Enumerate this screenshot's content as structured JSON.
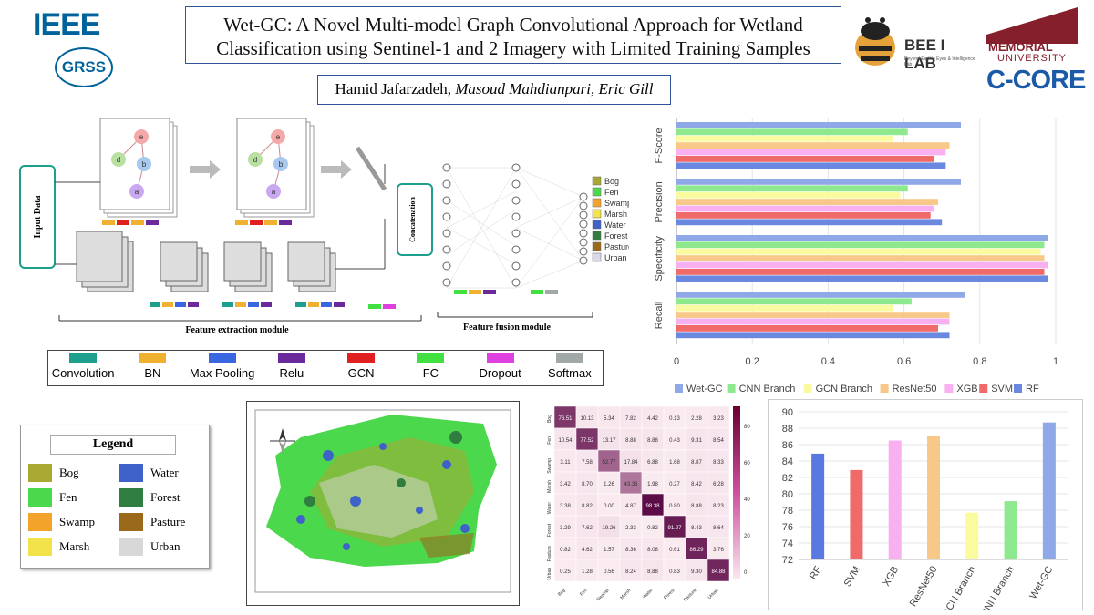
{
  "title": "Wet-GC: A Novel Multi-model Graph Convolutional Approach for Wetland Classification using Sentinel-1 and 2 Imagery with Limited Training Samples",
  "authors": {
    "lead": "Hamid Jafarzadeh, ",
    "rest": "Masoud Mahdianpari, Eric Gill"
  },
  "logos": {
    "ieee": "IEEE",
    "grss": "GRSS",
    "beelab": "BEE I LAB",
    "beelab_sub": "Beyond Earth's Eyes & Intelligence Lab",
    "memorial1": "MEMORIAL",
    "memorial2": "UNIVERSITY",
    "ccore": "C-CORE"
  },
  "diagram": {
    "input": "Input Data",
    "concat": "Concatenation",
    "fe_module": "Feature extraction module",
    "ff_module": "Feature fusion module",
    "node_labels": [
      "e",
      "d",
      "b",
      "a"
    ],
    "classes": [
      {
        "name": "Bog",
        "color": "#a8a832"
      },
      {
        "name": "Fen",
        "color": "#4cd84c"
      },
      {
        "name": "Swamp",
        "color": "#f4a32a"
      },
      {
        "name": "Marsh",
        "color": "#f2e34a"
      },
      {
        "name": "Water",
        "color": "#3f62c9"
      },
      {
        "name": "Forest",
        "color": "#2f7d3f"
      },
      {
        "name": "Pasture",
        "color": "#9a6a1a"
      },
      {
        "name": "Urban",
        "color": "#d8d8e8"
      }
    ]
  },
  "layer_legend": [
    {
      "name": "Convolution",
      "color": "#1e9e8c"
    },
    {
      "name": "BN",
      "color": "#f0b030"
    },
    {
      "name": "Max Pooling",
      "color": "#3a66e0"
    },
    {
      "name": "Relu",
      "color": "#6a2a9a"
    },
    {
      "name": "GCN",
      "color": "#e02020"
    },
    {
      "name": "FC",
      "color": "#3fe03f"
    },
    {
      "name": "Dropout",
      "color": "#e040e0"
    },
    {
      "name": "Softmax",
      "color": "#a0a8a8"
    }
  ],
  "map_legend": {
    "title": "Legend",
    "items": [
      {
        "name": "Bog",
        "color": "#a8a832"
      },
      {
        "name": "Water",
        "color": "#3f62c9"
      },
      {
        "name": "Fen",
        "color": "#4cd84c"
      },
      {
        "name": "Forest",
        "color": "#2f7d3f"
      },
      {
        "name": "Swamp",
        "color": "#f4a32a"
      },
      {
        "name": "Pasture",
        "color": "#9a6a1a"
      },
      {
        "name": "Marsh",
        "color": "#f2e34a"
      },
      {
        "name": "Urban",
        "color": "#d8d8d8"
      }
    ]
  },
  "confusion": {
    "labels": [
      "Bog",
      "Fen",
      "Swamp",
      "Marsh",
      "Water",
      "Forest",
      "Pasture",
      "Urban"
    ],
    "cells": [
      [
        "76.51",
        "10.13",
        "5.34",
        "7.82",
        "4.42",
        "0.13",
        "2.28",
        "3.23"
      ],
      [
        "10.54",
        "77.52",
        "13.17",
        "8.88",
        "8.88",
        "0.43",
        "9.31",
        "8.54"
      ],
      [
        "3.11",
        "7.58",
        "52.77",
        "17.84",
        "6.88",
        "1.68",
        "8.87",
        "8.33"
      ],
      [
        "3.42",
        "8.70",
        "1.26",
        "43.36",
        "1.98",
        "0.27",
        "8.42",
        "6.28"
      ],
      [
        "3.38",
        "8.82",
        "0.00",
        "4.87",
        "98.38",
        "0.80",
        "8.88",
        "8.23"
      ],
      [
        "3.29",
        "7.62",
        "19.26",
        "2.33",
        "0.82",
        "91.27",
        "8.43",
        "8.64"
      ],
      [
        "0.82",
        "4.62",
        "1.57",
        "8.36",
        "8.08",
        "0.61",
        "86.29",
        "3.76"
      ],
      [
        "0.25",
        "1.28",
        "0.56",
        "8.24",
        "8.88",
        "0.83",
        "9.30",
        "84.88"
      ]
    ],
    "colorbar_ticks": [
      "80",
      "60",
      "40",
      "20",
      "0"
    ]
  },
  "chart_data": [
    {
      "type": "bar",
      "orientation": "horizontal",
      "categories": [
        "F-Score",
        "Precision",
        "Specificity",
        "Recall"
      ],
      "series": [
        {
          "name": "Wet-GC",
          "color": "#8fa8e8",
          "values": [
            0.75,
            0.75,
            0.98,
            0.76
          ]
        },
        {
          "name": "CNN Branch",
          "color": "#8ee88e",
          "values": [
            0.61,
            0.61,
            0.97,
            0.62
          ]
        },
        {
          "name": "GCN Branch",
          "color": "#fafaa0",
          "values": [
            0.57,
            0.59,
            0.96,
            0.57
          ]
        },
        {
          "name": "ResNet50",
          "color": "#f8c888",
          "values": [
            0.72,
            0.69,
            0.97,
            0.72
          ]
        },
        {
          "name": "XGB",
          "color": "#f8b0f0",
          "values": [
            0.71,
            0.68,
            0.98,
            0.72
          ]
        },
        {
          "name": "SVM",
          "color": "#f06a6a",
          "values": [
            0.68,
            0.67,
            0.97,
            0.69
          ]
        },
        {
          "name": "RF",
          "color": "#6a88e0",
          "values": [
            0.71,
            0.7,
            0.98,
            0.72
          ]
        }
      ],
      "xlim": [
        0,
        1
      ],
      "xticks": [
        "0",
        "0.2",
        "0.4",
        "0.6",
        "0.8",
        "1"
      ],
      "legend": "bottom"
    },
    {
      "type": "bar",
      "categories": [
        "RF",
        "SVM",
        "XGB",
        "ResNet50",
        "GCN Branch",
        "CNN Branch",
        "Wet-GC"
      ],
      "values": [
        84.9,
        82.9,
        86.5,
        87.0,
        77.7,
        79.1,
        88.7
      ],
      "colors": [
        "#5a78e0",
        "#f06a6a",
        "#f8b0f0",
        "#f8c888",
        "#fafaa0",
        "#8ee88e",
        "#8fa8e8"
      ],
      "ylim": [
        72,
        90
      ],
      "yticks": [
        "90",
        "88",
        "86",
        "84",
        "82",
        "80",
        "78",
        "76",
        "74",
        "72"
      ]
    }
  ]
}
